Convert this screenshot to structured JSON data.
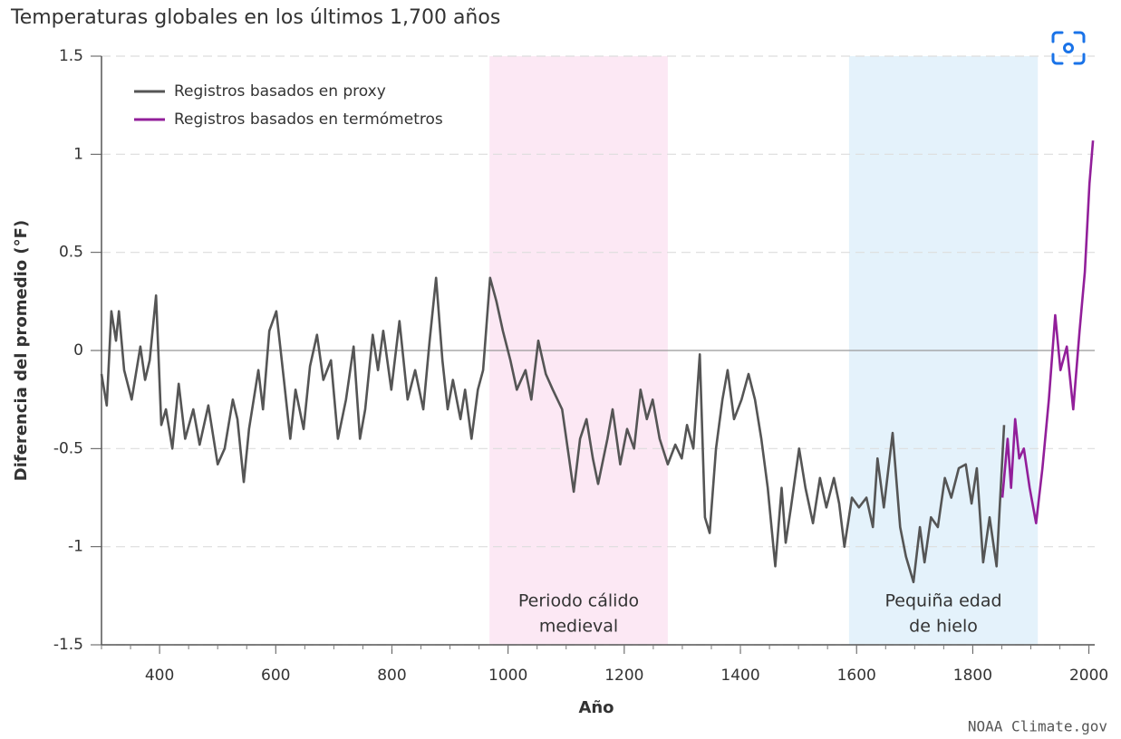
{
  "chart_data": {
    "type": "line",
    "title": "Temperaturas globales en los últimos 1,700 años",
    "x_label": "Año",
    "y_label": "Diferencia del promedio (°F)",
    "source": "NOAA Climate.gov",
    "xlim": [
      300,
      2010
    ],
    "ylim": [
      -1.5,
      1.5
    ],
    "xticks": [
      400,
      600,
      800,
      1000,
      1200,
      1400,
      1600,
      1800,
      2000
    ],
    "yticks": [
      -1.5,
      -1,
      -0.5,
      0,
      0.5,
      1,
      1.5
    ],
    "grid": true,
    "legend": "top-left",
    "regions": [
      {
        "label": [
          "Periodo cálido",
          "medieval"
        ],
        "start": 968,
        "end": 1275,
        "color": "#fce8f4",
        "text_color": "#f07cc4"
      },
      {
        "label": [
          "Pequiña edad",
          "de hielo"
        ],
        "start": 1587,
        "end": 1912,
        "color": "#e4f2fb",
        "text_color": "#5ab4e6"
      }
    ],
    "series": [
      {
        "name": "Registros basados en proxy",
        "color": "#555555",
        "x": [
          300,
          309,
          317,
          325,
          330,
          339,
          352,
          367,
          375,
          383,
          394,
          403,
          411,
          422,
          433,
          444,
          458,
          469,
          484,
          500,
          512,
          526,
          534,
          545,
          554,
          570,
          578,
          589,
          601,
          614,
          625,
          634,
          648,
          659,
          671,
          682,
          695,
          707,
          721,
          734,
          745,
          754,
          767,
          776,
          785,
          799,
          813,
          827,
          840,
          854,
          865,
          876,
          887,
          896,
          905,
          918,
          926,
          937,
          948,
          957,
          969,
          980,
          991,
          1004,
          1015,
          1030,
          1040,
          1052,
          1065,
          1077,
          1093,
          1105,
          1113,
          1124,
          1135,
          1146,
          1155,
          1171,
          1180,
          1193,
          1205,
          1217,
          1228,
          1239,
          1249,
          1261,
          1275,
          1288,
          1299,
          1308,
          1319,
          1330,
          1339,
          1347,
          1358,
          1369,
          1378,
          1389,
          1402,
          1414,
          1425,
          1436,
          1447,
          1460,
          1471,
          1478,
          1487,
          1501,
          1512,
          1525,
          1537,
          1548,
          1561,
          1570,
          1579,
          1592,
          1604,
          1617,
          1628,
          1636,
          1647,
          1662,
          1675,
          1685,
          1698,
          1709,
          1717,
          1728,
          1740,
          1752,
          1763,
          1776,
          1788,
          1798,
          1807,
          1818,
          1829,
          1841,
          1854
        ],
        "values": [
          -0.12,
          -0.28,
          0.2,
          0.05,
          0.2,
          -0.1,
          -0.25,
          0.02,
          -0.15,
          -0.05,
          0.28,
          -0.38,
          -0.3,
          -0.5,
          -0.17,
          -0.45,
          -0.3,
          -0.48,
          -0.28,
          -0.58,
          -0.5,
          -0.25,
          -0.35,
          -0.67,
          -0.4,
          -0.1,
          -0.3,
          0.1,
          0.2,
          -0.15,
          -0.45,
          -0.2,
          -0.4,
          -0.08,
          0.08,
          -0.15,
          -0.05,
          -0.45,
          -0.25,
          0.02,
          -0.45,
          -0.3,
          0.08,
          -0.1,
          0.1,
          -0.2,
          0.15,
          -0.25,
          -0.1,
          -0.3,
          0.05,
          0.37,
          -0.05,
          -0.3,
          -0.15,
          -0.35,
          -0.2,
          -0.45,
          -0.2,
          -0.1,
          0.37,
          0.25,
          0.1,
          -0.05,
          -0.2,
          -0.1,
          -0.25,
          0.05,
          -0.12,
          -0.2,
          -0.3,
          -0.55,
          -0.72,
          -0.45,
          -0.35,
          -0.55,
          -0.68,
          -0.45,
          -0.3,
          -0.58,
          -0.4,
          -0.5,
          -0.2,
          -0.35,
          -0.25,
          -0.45,
          -0.58,
          -0.48,
          -0.55,
          -0.38,
          -0.5,
          -0.02,
          -0.85,
          -0.93,
          -0.5,
          -0.25,
          -0.1,
          -0.35,
          -0.25,
          -0.12,
          -0.25,
          -0.45,
          -0.7,
          -1.1,
          -0.7,
          -0.98,
          -0.8,
          -0.5,
          -0.7,
          -0.88,
          -0.65,
          -0.8,
          -0.65,
          -0.78,
          -1.0,
          -0.75,
          -0.8,
          -0.75,
          -0.9,
          -0.55,
          -0.8,
          -0.42,
          -0.9,
          -1.05,
          -1.18,
          -0.9,
          -1.08,
          -0.85,
          -0.9,
          -0.65,
          -0.75,
          -0.6,
          -0.58,
          -0.78,
          -0.6,
          -1.08,
          -0.85,
          -1.1,
          -0.38
        ]
      },
      {
        "name": "Registros basados en termómetros",
        "color": "#921f9a",
        "x": [
          1851,
          1860,
          1866,
          1873,
          1880,
          1888,
          1898,
          1909,
          1920,
          1931,
          1942,
          1951,
          1962,
          1973,
          1984,
          1993,
          2001,
          2007
        ],
        "values": [
          -0.75,
          -0.45,
          -0.7,
          -0.35,
          -0.55,
          -0.5,
          -0.7,
          -0.88,
          -0.6,
          -0.25,
          0.18,
          -0.1,
          0.02,
          -0.3,
          0.1,
          0.4,
          0.85,
          1.07
        ]
      }
    ]
  }
}
